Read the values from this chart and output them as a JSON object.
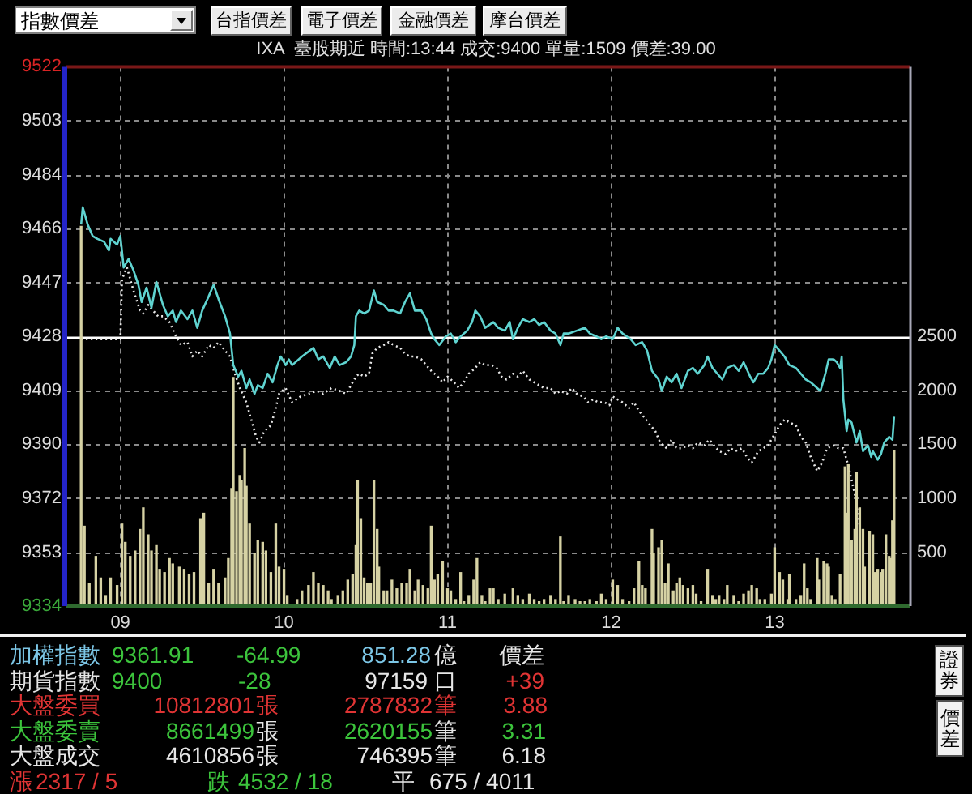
{
  "chart_data": [
    {
      "type": "other",
      "annotations": [
        "指數價差",
        "台指價差",
        "電子價差",
        "金融價差",
        "摩台價差"
      ]
    },
    {
      "type": "line",
      "title": "IXA  臺股期近 時間:13:44 成交:9400 單量:1509 價差:39.00",
      "xlim": [
        8.67,
        13.83
      ],
      "xticks": [
        {
          "value": 9,
          "label": "09"
        },
        {
          "value": 10,
          "label": "10"
        },
        {
          "value": 11,
          "label": "11"
        },
        {
          "value": 12,
          "label": "12"
        },
        {
          "value": 13,
          "label": "13"
        }
      ],
      "ylim": [
        9334,
        9522
      ],
      "yticks": [
        9334,
        {
          "value": 9352.8,
          "label": "9353"
        },
        {
          "value": 9371.6,
          "label": "9372"
        },
        {
          "value": 9390.4,
          "label": "9390"
        },
        {
          "value": 9409.2,
          "label": "9409"
        },
        9428,
        {
          "value": 9446.8,
          "label": "9447"
        },
        {
          "value": 9465.6,
          "label": "9466"
        },
        {
          "value": 9484.4,
          "label": "9484"
        },
        {
          "value": 9503.2,
          "label": "9503"
        },
        9522
      ],
      "y2lim": [
        0,
        5000
      ],
      "y2ticks": [
        500,
        1000,
        1500,
        2000,
        2500
      ],
      "grid": true,
      "ref_lines": [
        {
          "axis": "y",
          "value": 9428,
          "color": "#ffffff"
        }
      ],
      "series": [
        {
          "type": "line",
          "color": "#5fd3d0",
          "x": [
            8.76,
            8.77,
            8.8,
            8.83,
            8.86,
            8.9,
            8.93,
            8.94,
            8.98,
            9,
            9.02,
            9.05,
            9.08,
            9.11,
            9.13,
            9.16,
            9.19,
            9.22,
            9.26,
            9.29,
            9.32,
            9.34,
            9.37,
            9.41,
            9.44,
            9.47,
            9.5,
            9.54,
            9.57,
            9.6,
            9.64,
            9.67,
            9.69,
            9.72,
            9.74,
            9.77,
            9.79,
            9.82,
            9.84,
            9.87,
            9.9,
            9.93,
            9.96,
            9.98,
            10.01,
            10.03,
            10.05,
            10.11,
            10.18,
            10.21,
            10.24,
            10.28,
            10.31,
            10.34,
            10.38,
            10.41,
            10.43,
            10.44,
            10.46,
            10.49,
            10.52,
            10.55,
            10.57,
            10.61,
            10.64,
            10.67,
            10.71,
            10.74,
            10.77,
            10.8,
            10.84,
            10.87,
            10.9,
            10.92,
            10.95,
            10.99,
            11.02,
            11.05,
            11.08,
            11.12,
            11.15,
            11.17,
            11.2,
            11.23,
            11.28,
            11.31,
            11.35,
            11.38,
            11.4,
            11.43,
            11.46,
            11.5,
            11.53,
            11.56,
            11.59,
            11.63,
            11.66,
            11.69,
            11.71,
            11.74,
            11.79,
            11.84,
            11.87,
            11.91,
            11.94,
            11.97,
            12.01,
            12.04,
            12.07,
            12.12,
            12.15,
            12.19,
            12.22,
            12.25,
            12.29,
            12.31,
            12.34,
            12.37,
            12.4,
            12.43,
            12.47,
            12.5,
            12.53,
            12.57,
            12.59,
            12.62,
            12.65,
            12.68,
            12.71,
            12.75,
            12.78,
            12.81,
            12.85,
            12.87,
            12.9,
            12.93,
            12.96,
            12.98,
            13,
            13.03,
            13.06,
            13.09,
            13.13,
            13.16,
            13.19,
            13.22,
            13.26,
            13.28,
            13.31,
            13.33,
            13.36,
            13.38,
            13.4,
            13.41,
            13.42,
            13.44,
            13.45,
            13.47,
            13.5,
            13.52,
            13.54,
            13.57,
            13.59,
            13.6,
            13.63,
            13.65,
            13.67,
            13.7,
            13.72,
            13.73
          ],
          "values": [
            9467,
            9473,
            9467,
            9463,
            9462,
            9461,
            9458,
            9462,
            9460,
            9463,
            9452,
            9455,
            9451,
            9446,
            9440,
            9445,
            9438,
            9447,
            9439,
            9435,
            9437,
            9433,
            9437,
            9434,
            9437,
            9431,
            9437,
            9442,
            9446,
            9441,
            9435,
            9429,
            9418,
            9414,
            9416,
            9410,
            9413,
            9408,
            9411,
            9410,
            9415,
            9412,
            9418,
            9421,
            9418,
            9420,
            9418,
            9421,
            9424,
            9420,
            9421,
            9417,
            9421,
            9418,
            9419,
            9421,
            9425,
            9435,
            9437,
            9436,
            9437,
            9444,
            9440,
            9439,
            9437,
            9437,
            9436,
            9440,
            9443,
            9437,
            9437,
            9434,
            9429,
            9427,
            9425,
            9428,
            9429,
            9426,
            9428,
            9430,
            9433,
            9437,
            9435,
            9431,
            9433,
            9431,
            9430,
            9433,
            9427,
            9431,
            9434,
            9433,
            9434,
            9432,
            9433,
            9430,
            9429,
            9425,
            9429,
            9429,
            9430,
            9431,
            9429,
            9428,
            9427,
            9428,
            9427,
            9431,
            9429,
            9427,
            9425,
            9426,
            9423,
            9416,
            9413,
            9409,
            9414,
            9412,
            9415,
            9410,
            9416,
            9417,
            9415,
            9418,
            9421,
            9417,
            9415,
            9413,
            9417,
            9418,
            9416,
            9419,
            9414,
            9412,
            9415,
            9415,
            9417,
            9420,
            9425,
            9423,
            9421,
            9418,
            9417,
            9415,
            9413,
            9412,
            9410,
            9409,
            9415,
            9420,
            9420,
            9419,
            9417,
            9421,
            9406,
            9395,
            9399,
            9398,
            9391,
            9395,
            9388,
            9390,
            9386,
            9388,
            9385,
            9387,
            9391,
            9393,
            9392,
            9400
          ]
        },
        {
          "type": "line",
          "color": "#e8e8e8",
          "line_style": "dotted",
          "x": [
            8.76,
            9,
            9.01,
            9.04,
            9.08,
            9.12,
            9.14,
            9.17,
            9.2,
            9.23,
            9.26,
            9.3,
            9.34,
            9.37,
            9.41,
            9.44,
            9.47,
            9.5,
            9.54,
            9.57,
            9.6,
            9.64,
            9.67,
            9.7,
            9.73,
            9.77,
            9.8,
            9.83,
            9.85,
            9.88,
            9.92,
            9.95,
            9.97,
            10.01,
            10.05,
            10.1,
            10.15,
            10.2,
            10.24,
            10.29,
            10.34,
            10.38,
            10.41,
            10.44,
            10.46,
            10.49,
            10.52,
            10.54,
            10.57,
            10.61,
            10.64,
            10.67,
            10.71,
            10.74,
            10.77,
            10.8,
            10.84,
            10.87,
            10.9,
            10.94,
            10.97,
            11,
            11.04,
            11.07,
            11.1,
            11.13,
            11.17,
            11.2,
            11.23,
            11.27,
            11.3,
            11.33,
            11.36,
            11.4,
            11.43,
            11.46,
            11.5,
            11.53,
            11.56,
            11.59,
            11.63,
            11.66,
            11.69,
            11.73,
            11.76,
            11.79,
            11.83,
            11.86,
            11.89,
            11.92,
            11.96,
            11.99,
            12.01,
            12.04,
            12.07,
            12.11,
            12.14,
            12.17,
            12.2,
            12.24,
            12.27,
            12.3,
            12.34,
            12.37,
            12.4,
            12.43,
            12.47,
            12.5,
            12.53,
            12.57,
            12.6,
            12.63,
            12.66,
            12.7,
            12.73,
            12.76,
            12.8,
            12.83,
            12.86,
            12.9,
            12.93,
            12.96,
            12.99,
            13.03,
            13.06,
            13.09,
            13.13,
            13.16,
            13.19,
            13.22,
            13.26,
            13.29,
            13.32,
            13.36,
            13.39,
            13.42,
            13.45,
            13.49,
            13.52
          ],
          "values": [
            9427,
            9427,
            9448,
            9452,
            9444,
            9437,
            9436,
            9439,
            9437,
            9435,
            9435,
            9433,
            9428,
            9425,
            9426,
            9421,
            9423,
            9421,
            9425,
            9424,
            9426,
            9423,
            9421,
            9415,
            9410,
            9405,
            9399,
            9393,
            9391,
            9395,
            9397,
            9403,
            9408,
            9410,
            9405,
            9407,
            9408,
            9409,
            9408,
            9410,
            9409,
            9408,
            9411,
            9414,
            9415,
            9414,
            9415,
            9422,
            9424,
            9425,
            9426,
            9425,
            9424,
            9422,
            9421,
            9421,
            9420,
            9418,
            9416,
            9414,
            9412,
            9414,
            9412,
            9410,
            9412,
            9415,
            9417,
            9419,
            9418,
            9418,
            9417,
            9414,
            9413,
            9415,
            9414,
            9416,
            9413,
            9412,
            9411,
            9410,
            9410,
            9408,
            9409,
            9408,
            9410,
            9408,
            9407,
            9405,
            9406,
            9405,
            9405,
            9404,
            9407,
            9406,
            9405,
            9403,
            9405,
            9402,
            9400,
            9397,
            9395,
            9391,
            9389,
            9392,
            9389,
            9389,
            9390,
            9389,
            9391,
            9390,
            9392,
            9390,
            9388,
            9387,
            9389,
            9388,
            9389,
            9386,
            9384,
            9388,
            9389,
            9390,
            9393,
            9397,
            9399,
            9398,
            9397,
            9393,
            9391,
            9386,
            9381,
            9384,
            9389,
            9390,
            9389,
            9389,
            9383,
            9373,
            9362
          ]
        },
        {
          "type": "bar",
          "axis": "y2",
          "color": "#d6d2a4",
          "x": [
            8.76,
            8.78,
            8.81,
            8.85,
            8.88,
            8.91,
            8.94,
            8.98,
            9.01,
            9.03,
            9.06,
            9.09,
            9.12,
            9.14,
            9.17,
            9.19,
            9.22,
            9.24,
            9.27,
            9.3,
            9.32,
            9.36,
            9.39,
            9.42,
            9.45,
            9.49,
            9.51,
            9.54,
            9.57,
            9.6,
            9.64,
            9.66,
            9.68,
            9.69,
            9.71,
            9.73,
            9.74,
            9.76,
            9.77,
            9.79,
            9.82,
            9.84,
            9.87,
            9.89,
            9.92,
            9.95,
            9.97,
            10,
            10.02,
            10.08,
            10.11,
            10.15,
            10.18,
            10.21,
            10.24,
            10.27,
            10.29,
            10.33,
            10.36,
            10.39,
            10.42,
            10.44,
            10.45,
            10.47,
            10.49,
            10.51,
            10.53,
            10.55,
            10.57,
            10.58,
            10.61,
            10.63,
            10.66,
            10.69,
            10.72,
            10.75,
            10.77,
            10.8,
            10.82,
            10.85,
            10.88,
            10.9,
            10.92,
            10.94,
            10.97,
            11,
            11.02,
            11.05,
            11.08,
            11.1,
            11.13,
            11.16,
            11.18,
            11.21,
            11.23,
            11.26,
            11.28,
            11.31,
            11.35,
            11.4,
            11.43,
            11.46,
            11.5,
            11.53,
            11.56,
            11.59,
            11.63,
            11.66,
            11.69,
            11.71,
            11.74,
            11.78,
            11.81,
            11.84,
            11.87,
            11.91,
            11.94,
            11.97,
            12.01,
            12.04,
            12.07,
            12.11,
            12.14,
            12.17,
            12.19,
            12.21,
            12.25,
            12.26,
            12.29,
            12.31,
            12.33,
            12.35,
            12.38,
            12.4,
            12.42,
            12.44,
            12.47,
            12.5,
            12.52,
            12.55,
            12.59,
            12.62,
            12.64,
            12.66,
            12.69,
            12.71,
            12.75,
            12.78,
            12.81,
            12.84,
            12.86,
            12.89,
            12.91,
            12.94,
            12.98,
            13,
            13.03,
            13.05,
            13.08,
            13.09,
            13.13,
            13.16,
            13.18,
            13.2,
            13.22,
            13.26,
            13.27,
            13.3,
            13.32,
            13.33,
            13.35,
            13.37,
            13.4,
            13.43,
            13.44,
            13.45,
            13.47,
            13.49,
            13.5,
            13.52,
            13.54,
            13.55,
            13.58,
            13.6,
            13.61,
            13.63,
            13.65,
            13.66,
            13.68,
            13.7,
            13.71,
            13.72,
            13.73
          ],
          "values": [
            3520,
            740,
            210,
            460,
            260,
            90,
            260,
            190,
            760,
            590,
            460,
            510,
            710,
            910,
            660,
            510,
            560,
            340,
            310,
            440,
            390,
            360,
            340,
            290,
            310,
            810,
            860,
            210,
            340,
            210,
            260,
            440,
            1090,
            2120,
            1060,
            1210,
            1160,
            1460,
            1110,
            760,
            490,
            610,
            590,
            510,
            310,
            760,
            360,
            340,
            90,
            60,
            140,
            190,
            310,
            210,
            190,
            140,
            60,
            90,
            140,
            240,
            290,
            560,
            1160,
            810,
            260,
            210,
            210,
            1160,
            710,
            360,
            140,
            140,
            240,
            160,
            210,
            210,
            340,
            140,
            240,
            190,
            160,
            740,
            240,
            290,
            410,
            160,
            140,
            60,
            310,
            40,
            90,
            240,
            440,
            90,
            40,
            160,
            160,
            60,
            110,
            160,
            90,
            60,
            110,
            60,
            40,
            60,
            90,
            60,
            640,
            40,
            90,
            60,
            40,
            40,
            60,
            40,
            110,
            60,
            240,
            190,
            60,
            40,
            160,
            410,
            190,
            160,
            710,
            490,
            540,
            610,
            210,
            390,
            140,
            210,
            260,
            190,
            160,
            190,
            110,
            40,
            340,
            90,
            60,
            90,
            60,
            190,
            90,
            40,
            110,
            140,
            190,
            160,
            60,
            60,
            110,
            540,
            310,
            240,
            60,
            290,
            60,
            90,
            390,
            160,
            60,
            440,
            240,
            410,
            390,
            360,
            90,
            60,
            290,
            1290,
            860,
            1310,
            610,
            710,
            1240,
            910,
            710,
            360,
            690,
            660,
            310,
            340,
            310,
            340,
            660,
            460,
            440,
            790,
            1440
          ]
        }
      ]
    },
    {
      "type": "other",
      "annotations": [
        "加權指數",
        "9361.91",
        "-64.99",
        "851.28",
        "億",
        "價差",
        "期貨指數",
        "9400",
        "-28",
        "97159",
        "口",
        "+39",
        "大盤委買",
        "10812801",
        "張",
        "2787832",
        "筆",
        "3.88",
        "大盤委賣",
        "8661499",
        "張",
        "2620155",
        "筆",
        "3.31",
        "大盤成交",
        "4610856",
        "張",
        "746395",
        "筆",
        "6.18",
        "漲",
        "2317 / 5",
        "跌",
        "4532 / 18",
        "平",
        "675 / 4011",
        "證券",
        "價差"
      ]
    }
  ]
}
